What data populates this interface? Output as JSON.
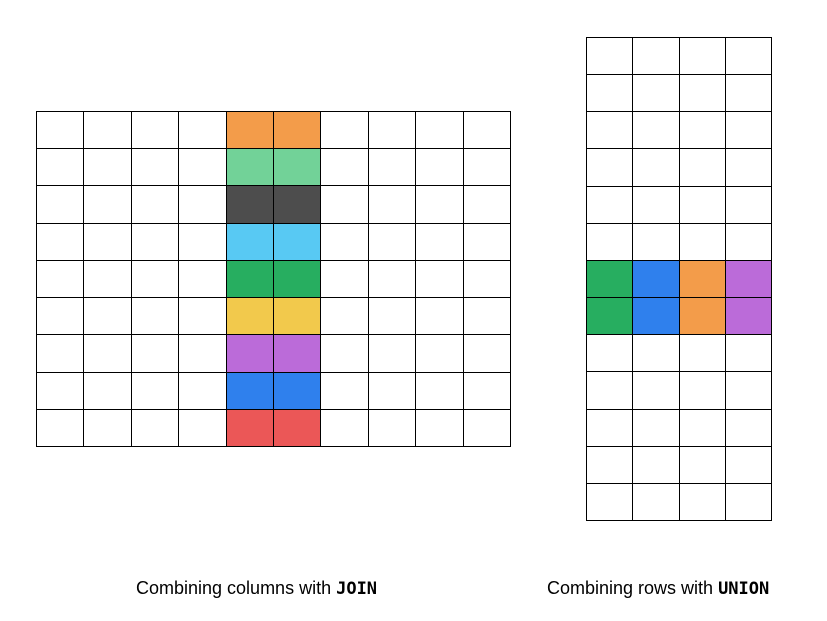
{
  "join_diagram": {
    "rows": 9,
    "cols": 10,
    "highlight_cols": [
      4,
      5
    ],
    "row_colors": [
      "#F39C4A",
      "#72D298",
      "#4D4D4D",
      "#58C9F3",
      "#27AE60",
      "#F2C94C",
      "#BB6BD9",
      "#2F80ED",
      "#EB5757"
    ],
    "caption_text": "Combining columns with ",
    "caption_keyword": "JOIN"
  },
  "union_diagram": {
    "rows": 13,
    "cols": 4,
    "highlight_rows": [
      6,
      7
    ],
    "col_colors": [
      "#27AE60",
      "#2F80ED",
      "#F39C4A",
      "#BB6BD9"
    ],
    "caption_text": "Combining rows with ",
    "caption_keyword": "UNION"
  }
}
